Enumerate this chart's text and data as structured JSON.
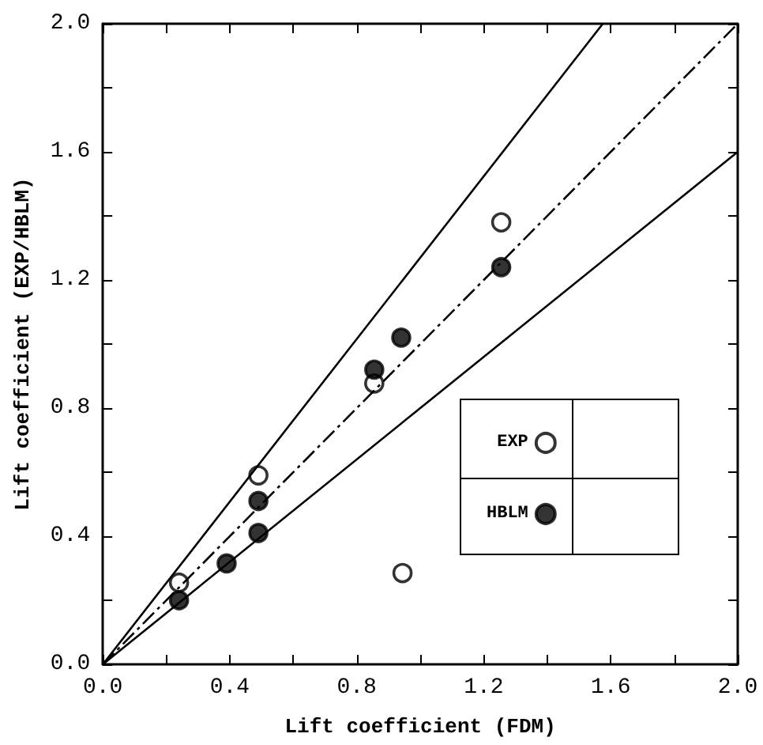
{
  "chart_data": {
    "type": "scatter",
    "xlabel": "Lift coefficient (FDM)",
    "ylabel": "Lift coefficient (EXP/HBLM)",
    "xlim": [
      0,
      2.0
    ],
    "ylim": [
      0,
      2.0
    ],
    "xticks": [
      {
        "value": 0,
        "label": "0.0"
      },
      {
        "value": 0.2,
        "label": null
      },
      {
        "value": 0.4,
        "label": "0.4"
      },
      {
        "value": 0.6,
        "label": null
      },
      {
        "value": 0.8,
        "label": "0.8"
      },
      {
        "value": 1.0,
        "label": null
      },
      {
        "value": 1.2,
        "label": "1.2"
      },
      {
        "value": 1.4,
        "label": null
      },
      {
        "value": 1.6,
        "label": "1.6"
      },
      {
        "value": 1.8,
        "label": null
      },
      {
        "value": 2.0,
        "label": "2.0"
      }
    ],
    "yticks": [
      {
        "value": 0,
        "label": "0.0"
      },
      {
        "value": 0.2,
        "label": null
      },
      {
        "value": 0.4,
        "label": "0.4"
      },
      {
        "value": 0.6,
        "label": null
      },
      {
        "value": 0.8,
        "label": "0.8"
      },
      {
        "value": 1.0,
        "label": null
      },
      {
        "value": 1.2,
        "label": "1.2"
      },
      {
        "value": 1.4,
        "label": null
      },
      {
        "value": 1.6,
        "label": "1.6"
      },
      {
        "value": 1.8,
        "label": null
      },
      {
        "value": 2.0,
        "label": "2.0"
      }
    ],
    "grid": false,
    "legend": "bottom right",
    "series": [
      {
        "name": "EXP",
        "marker": "circle",
        "color": "#ffffff",
        "x": [
          0.24,
          0.49,
          0.855,
          1.255,
          0.944
        ],
        "values": [
          0.255,
          0.59,
          0.877,
          1.38,
          0.285
        ]
      },
      {
        "name": "HBLM",
        "marker": "circle",
        "color": "#000000",
        "x": [
          0.24,
          0.39,
          0.49,
          0.49,
          0.855,
          0.94,
          1.255
        ],
        "values": [
          0.2,
          0.315,
          0.51,
          0.41,
          0.92,
          1.02,
          1.24
        ]
      },
      {
        "type": "line",
        "line_style": "solid",
        "color": "#000000",
        "x": [
          0,
          1.575
        ],
        "values": [
          0,
          2.0
        ]
      },
      {
        "type": "line",
        "line_style": "dashdot",
        "color": "#000000",
        "x": [
          0,
          2.0
        ],
        "values": [
          0,
          2.0
        ]
      },
      {
        "type": "line",
        "line_style": "solid",
        "color": "#000000",
        "x": [
          0,
          2.0
        ],
        "values": [
          0,
          1.6
        ]
      }
    ]
  }
}
